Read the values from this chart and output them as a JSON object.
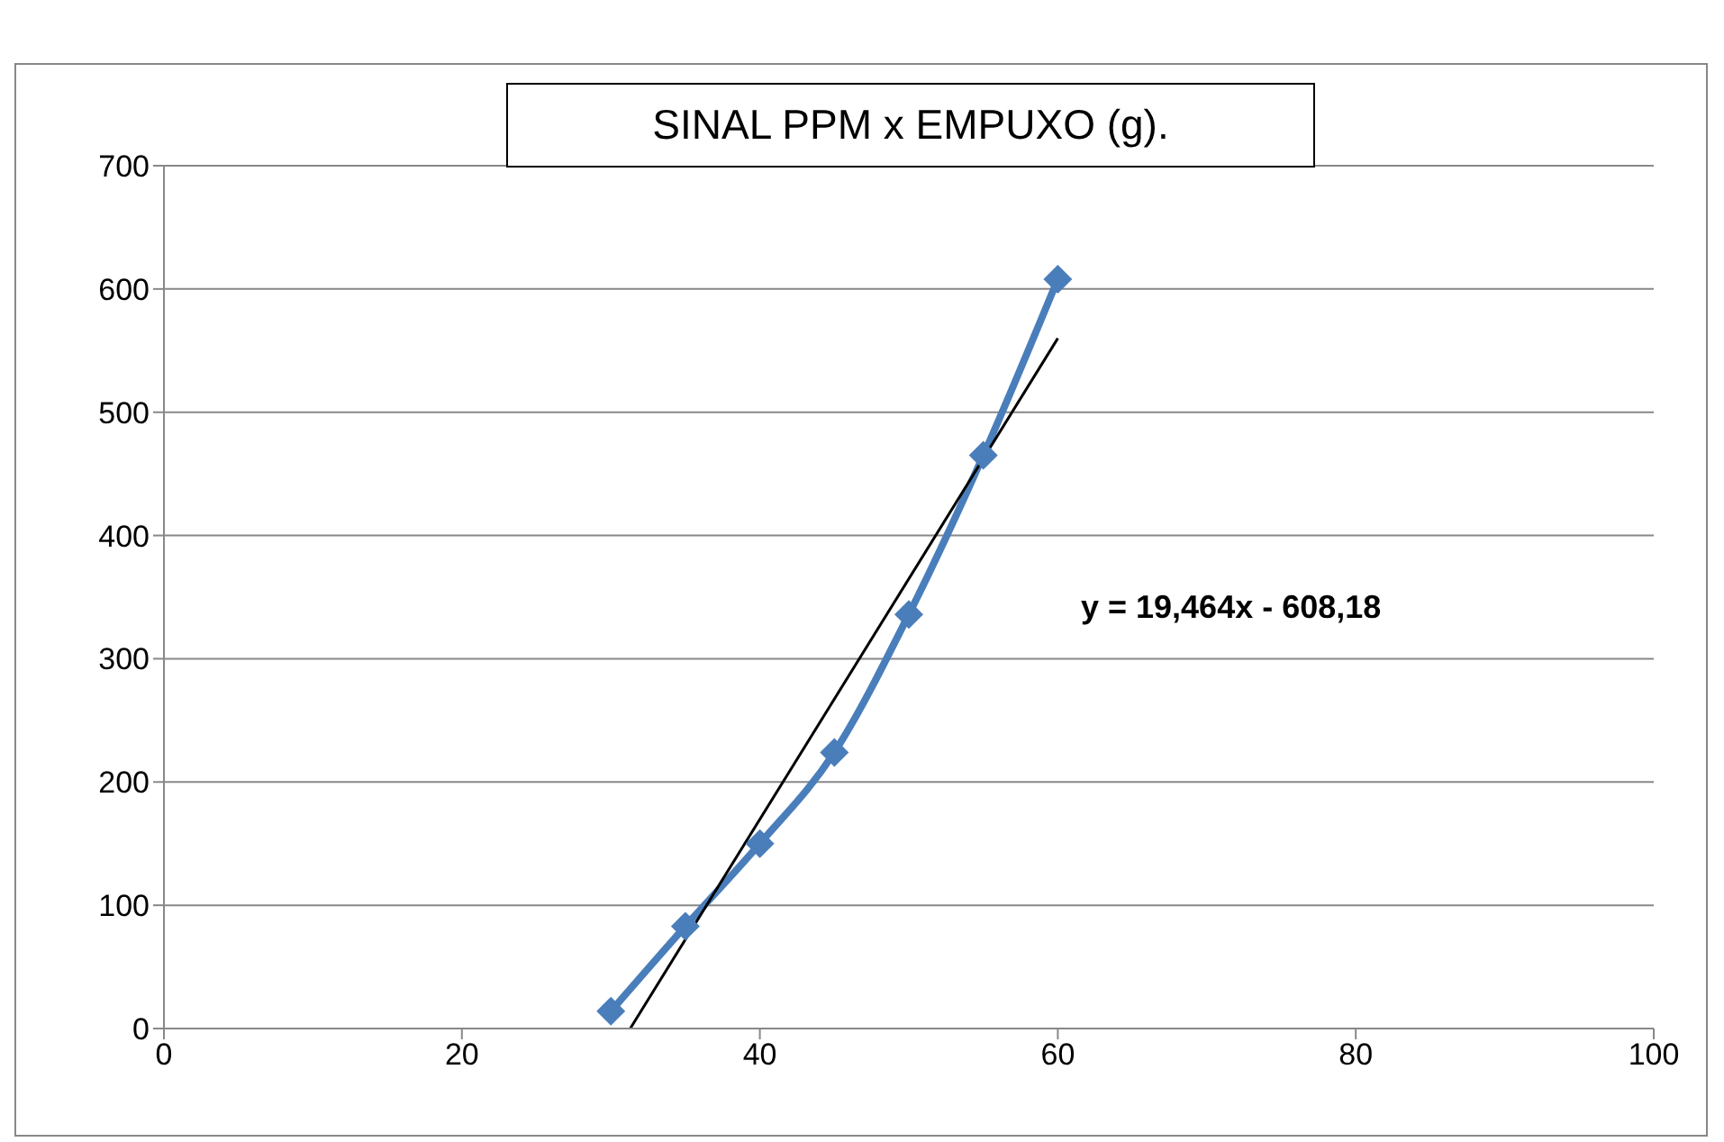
{
  "chart_data": {
    "type": "line",
    "title": "SINAL PPM x EMPUXO (g).",
    "xlim": [
      0,
      100
    ],
    "xticks": [
      0,
      20,
      40,
      60,
      80,
      100
    ],
    "ylim": [
      0,
      700
    ],
    "yticks": [
      0,
      100,
      200,
      300,
      400,
      500,
      600,
      700
    ],
    "grid": "y",
    "marker": "diamond",
    "line_style": "solid",
    "series": [
      {
        "color": "#4a7ebb",
        "x": [
          30,
          35,
          40,
          45,
          50,
          55,
          60
        ],
        "values": [
          14,
          83,
          150,
          224,
          336,
          465,
          608
        ]
      },
      {
        "type": "line",
        "color": "#000000",
        "marker": "none",
        "x": [
          31.3,
          60
        ],
        "values": [
          0,
          560
        ]
      }
    ],
    "annotations": [
      "y = 19,464x - 608,18"
    ]
  }
}
